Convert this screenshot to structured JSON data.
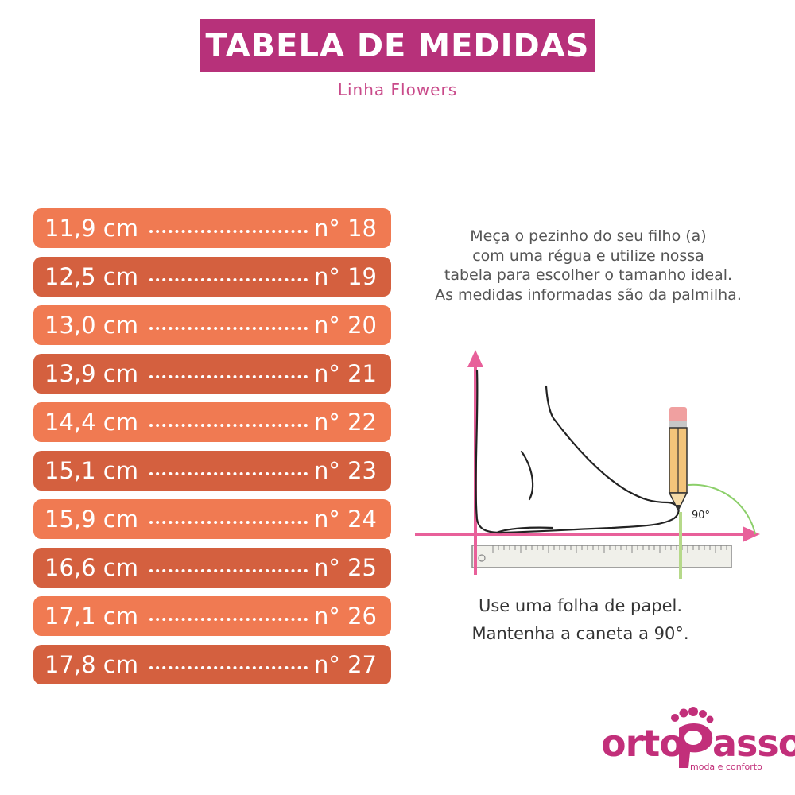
{
  "header": {
    "title": "TABELA DE MEDIDAS",
    "subtitle": "Linha Flowers"
  },
  "size_table": [
    {
      "cm": "11,9 cm",
      "size": "n° 18"
    },
    {
      "cm": "12,5 cm",
      "size": "n° 19"
    },
    {
      "cm": "13,0 cm",
      "size": "n° 20"
    },
    {
      "cm": "13,9 cm",
      "size": "n° 21"
    },
    {
      "cm": "14,4 cm",
      "size": "n° 22"
    },
    {
      "cm": "15,1 cm",
      "size": "n° 23"
    },
    {
      "cm": "15,9 cm",
      "size": "n° 24"
    },
    {
      "cm": "16,6 cm",
      "size": "n° 25"
    },
    {
      "cm": "17,1 cm",
      "size": "n° 26"
    },
    {
      "cm": "17,8 cm",
      "size": "n° 27"
    }
  ],
  "instructions": {
    "lines": [
      "Meça o pezinho do seu filho (a)",
      "com uma régua e utilize nossa",
      "tabela para escolher o tamanho ideal.",
      "As medidas informadas são da palmilha."
    ]
  },
  "diagram": {
    "angle_label": "90°",
    "caption_line1": "Use uma folha de papel.",
    "caption_line2": "Mantenha a caneta a 90°."
  },
  "logo": {
    "name_part1": "orto",
    "name_part2": "asso",
    "tagline": "moda e conforto"
  },
  "colors": {
    "title_bg": "#b7317a",
    "row_light": "#f07a52",
    "row_dark": "#d4603f",
    "axis_pink": "#e8609a",
    "brand": "#c22f7a"
  }
}
